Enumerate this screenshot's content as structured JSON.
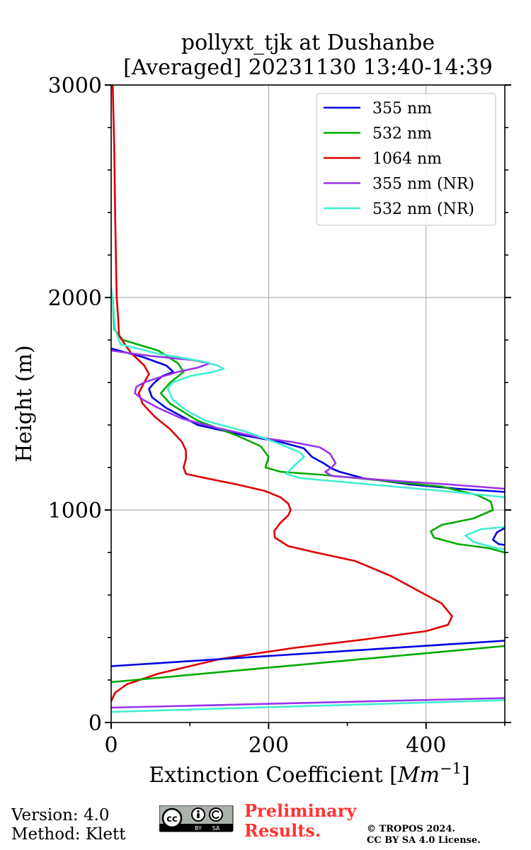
{
  "chart_data": {
    "type": "line",
    "title": [
      "pollyxt_tjk at Dushanbe",
      "[Averaged] 20231130 13:40-14:39"
    ],
    "xlabel_prefix": "Extinction Coefficient [",
    "xlabel_unit": "Mm",
    "xlabel_exp": "−1",
    "xlabel_suffix": "]",
    "ylabel": "Height (m)",
    "xlim": [
      0,
      500
    ],
    "ylim": [
      0,
      3000
    ],
    "xticks": [
      0,
      200,
      400
    ],
    "xtick_labels": [
      "0",
      "200",
      "400"
    ],
    "yticks": [
      0,
      1000,
      2000,
      3000
    ],
    "ytick_labels": [
      "0",
      "1000",
      "2000",
      "3000"
    ],
    "grid": true,
    "legend_position": "top-right",
    "series": [
      {
        "name": "355 nm",
        "color": "#0000e0",
        "points": [
          [
            0,
            1760
          ],
          [
            40,
            1720
          ],
          [
            70,
            1680
          ],
          [
            79,
            1650
          ],
          [
            65,
            1630
          ],
          [
            55,
            1600
          ],
          [
            48,
            1570
          ],
          [
            52,
            1530
          ],
          [
            70,
            1480
          ],
          [
            110,
            1400
          ],
          [
            170,
            1350
          ],
          [
            215,
            1320
          ],
          [
            245,
            1290
          ],
          [
            255,
            1250
          ],
          [
            270,
            1220
          ],
          [
            280,
            1195
          ],
          [
            290,
            1180
          ],
          [
            320,
            1150
          ],
          [
            380,
            1120
          ],
          [
            440,
            1100
          ],
          [
            500,
            1085
          ]
        ]
      },
      {
        "name": "532 nm",
        "color": "#00aa00",
        "points": [
          [
            2,
            2000
          ],
          [
            4,
            1850
          ],
          [
            15,
            1800
          ],
          [
            60,
            1750
          ],
          [
            85,
            1690
          ],
          [
            92,
            1650
          ],
          [
            75,
            1600
          ],
          [
            63,
            1550
          ],
          [
            75,
            1500
          ],
          [
            110,
            1420
          ],
          [
            160,
            1350
          ],
          [
            190,
            1300
          ],
          [
            200,
            1250
          ],
          [
            196,
            1200
          ],
          [
            215,
            1180
          ],
          [
            270,
            1165
          ],
          [
            340,
            1140
          ],
          [
            420,
            1110
          ],
          [
            465,
            1070
          ],
          [
            482,
            1040
          ],
          [
            485,
            1000
          ],
          [
            460,
            960
          ],
          [
            420,
            930
          ],
          [
            406,
            900
          ],
          [
            410,
            870
          ],
          [
            440,
            840
          ],
          [
            480,
            820
          ],
          [
            500,
            800
          ]
        ]
      },
      {
        "name": "1064 nm",
        "color": "#dd0000",
        "points": [
          [
            2,
            3000
          ],
          [
            4,
            2700
          ],
          [
            5,
            2400
          ],
          [
            6,
            2200
          ],
          [
            7,
            2000
          ],
          [
            9,
            1900
          ],
          [
            10,
            1820
          ],
          [
            25,
            1740
          ],
          [
            42,
            1680
          ],
          [
            48,
            1640
          ],
          [
            42,
            1600
          ],
          [
            35,
            1550
          ],
          [
            40,
            1500
          ],
          [
            55,
            1440
          ],
          [
            75,
            1380
          ],
          [
            90,
            1320
          ],
          [
            95,
            1280
          ],
          [
            95,
            1240
          ],
          [
            92,
            1200
          ],
          [
            95,
            1170
          ],
          [
            120,
            1150
          ],
          [
            160,
            1120
          ],
          [
            195,
            1090
          ],
          [
            215,
            1060
          ],
          [
            225,
            1030
          ],
          [
            228,
            1000
          ],
          [
            225,
            975
          ],
          [
            215,
            940
          ],
          [
            207,
            900
          ],
          [
            208,
            870
          ],
          [
            225,
            830
          ],
          [
            260,
            800
          ],
          [
            310,
            760
          ],
          [
            355,
            690
          ],
          [
            390,
            620
          ],
          [
            420,
            560
          ],
          [
            433,
            500
          ],
          [
            428,
            460
          ],
          [
            400,
            430
          ],
          [
            320,
            390
          ],
          [
            230,
            350
          ],
          [
            140,
            300
          ],
          [
            60,
            230
          ],
          [
            20,
            180
          ],
          [
            5,
            140
          ],
          [
            0,
            100
          ]
        ]
      },
      {
        "name": "355 nm (NR)",
        "color": "#9933ee",
        "points": [
          [
            0,
            1750
          ],
          [
            50,
            1725
          ],
          [
            105,
            1705
          ],
          [
            125,
            1690
          ],
          [
            110,
            1670
          ],
          [
            85,
            1650
          ],
          [
            62,
            1625
          ],
          [
            42,
            1600
          ],
          [
            32,
            1580
          ],
          [
            30,
            1550
          ],
          [
            40,
            1520
          ],
          [
            60,
            1480
          ],
          [
            90,
            1430
          ],
          [
            130,
            1390
          ],
          [
            190,
            1340
          ],
          [
            230,
            1320
          ],
          [
            265,
            1295
          ],
          [
            278,
            1265
          ],
          [
            282,
            1240
          ],
          [
            285,
            1220
          ],
          [
            280,
            1200
          ],
          [
            272,
            1180
          ],
          [
            280,
            1160
          ],
          [
            350,
            1140
          ],
          [
            430,
            1120
          ],
          [
            500,
            1100
          ]
        ]
      },
      {
        "name": "532 nm (NR)",
        "color": "#40eed0",
        "points": [
          [
            0,
            2050
          ],
          [
            3,
            1950
          ],
          [
            5,
            1850
          ],
          [
            12,
            1780
          ],
          [
            60,
            1735
          ],
          [
            115,
            1700
          ],
          [
            135,
            1680
          ],
          [
            143,
            1665
          ],
          [
            130,
            1650
          ],
          [
            100,
            1630
          ],
          [
            78,
            1600
          ],
          [
            72,
            1570
          ],
          [
            78,
            1520
          ],
          [
            95,
            1470
          ],
          [
            120,
            1420
          ],
          [
            170,
            1370
          ],
          [
            215,
            1310
          ],
          [
            240,
            1270
          ],
          [
            245,
            1250
          ],
          [
            230,
            1200
          ],
          [
            222,
            1170
          ],
          [
            240,
            1150
          ],
          [
            330,
            1120
          ],
          [
            420,
            1090
          ],
          [
            500,
            1060
          ]
        ]
      },
      {
        "name": "355 nm (NR low)",
        "color": "#9933ee",
        "legend": false,
        "points": [
          [
            0,
            70
          ],
          [
            500,
            115
          ]
        ]
      },
      {
        "name": "532 nm (NR low)",
        "color": "#40eed0",
        "legend": false,
        "points": [
          [
            0,
            50
          ],
          [
            500,
            105
          ]
        ]
      },
      {
        "name": "355 nm low",
        "color": "#0000e0",
        "legend": false,
        "points": [
          [
            0,
            265
          ],
          [
            500,
            385
          ]
        ]
      },
      {
        "name": "532 nm low",
        "color": "#00aa00",
        "legend": false,
        "points": [
          [
            0,
            190
          ],
          [
            500,
            360
          ]
        ]
      },
      {
        "name": "532 nm (NR) mid",
        "color": "#40eed0",
        "legend": false,
        "points": [
          [
            500,
            920
          ],
          [
            470,
            910
          ],
          [
            450,
            880
          ],
          [
            460,
            850
          ],
          [
            490,
            820
          ],
          [
            500,
            815
          ]
        ]
      },
      {
        "name": "355 nm mid",
        "color": "#0000e0",
        "legend": false,
        "points": [
          [
            500,
            915
          ],
          [
            490,
            895
          ],
          [
            485,
            860
          ],
          [
            492,
            840
          ],
          [
            500,
            835
          ]
        ]
      }
    ]
  },
  "footer": {
    "version": "Version: 4.0",
    "method": "Method: Klett",
    "preliminary": [
      "Preliminary",
      "Results."
    ],
    "copyright": [
      "© TROPOS 2024.",
      "CC BY SA 4.0 License."
    ],
    "cc_badge": {
      "cc": "cc",
      "by": "BY",
      "sa": "SA"
    }
  }
}
